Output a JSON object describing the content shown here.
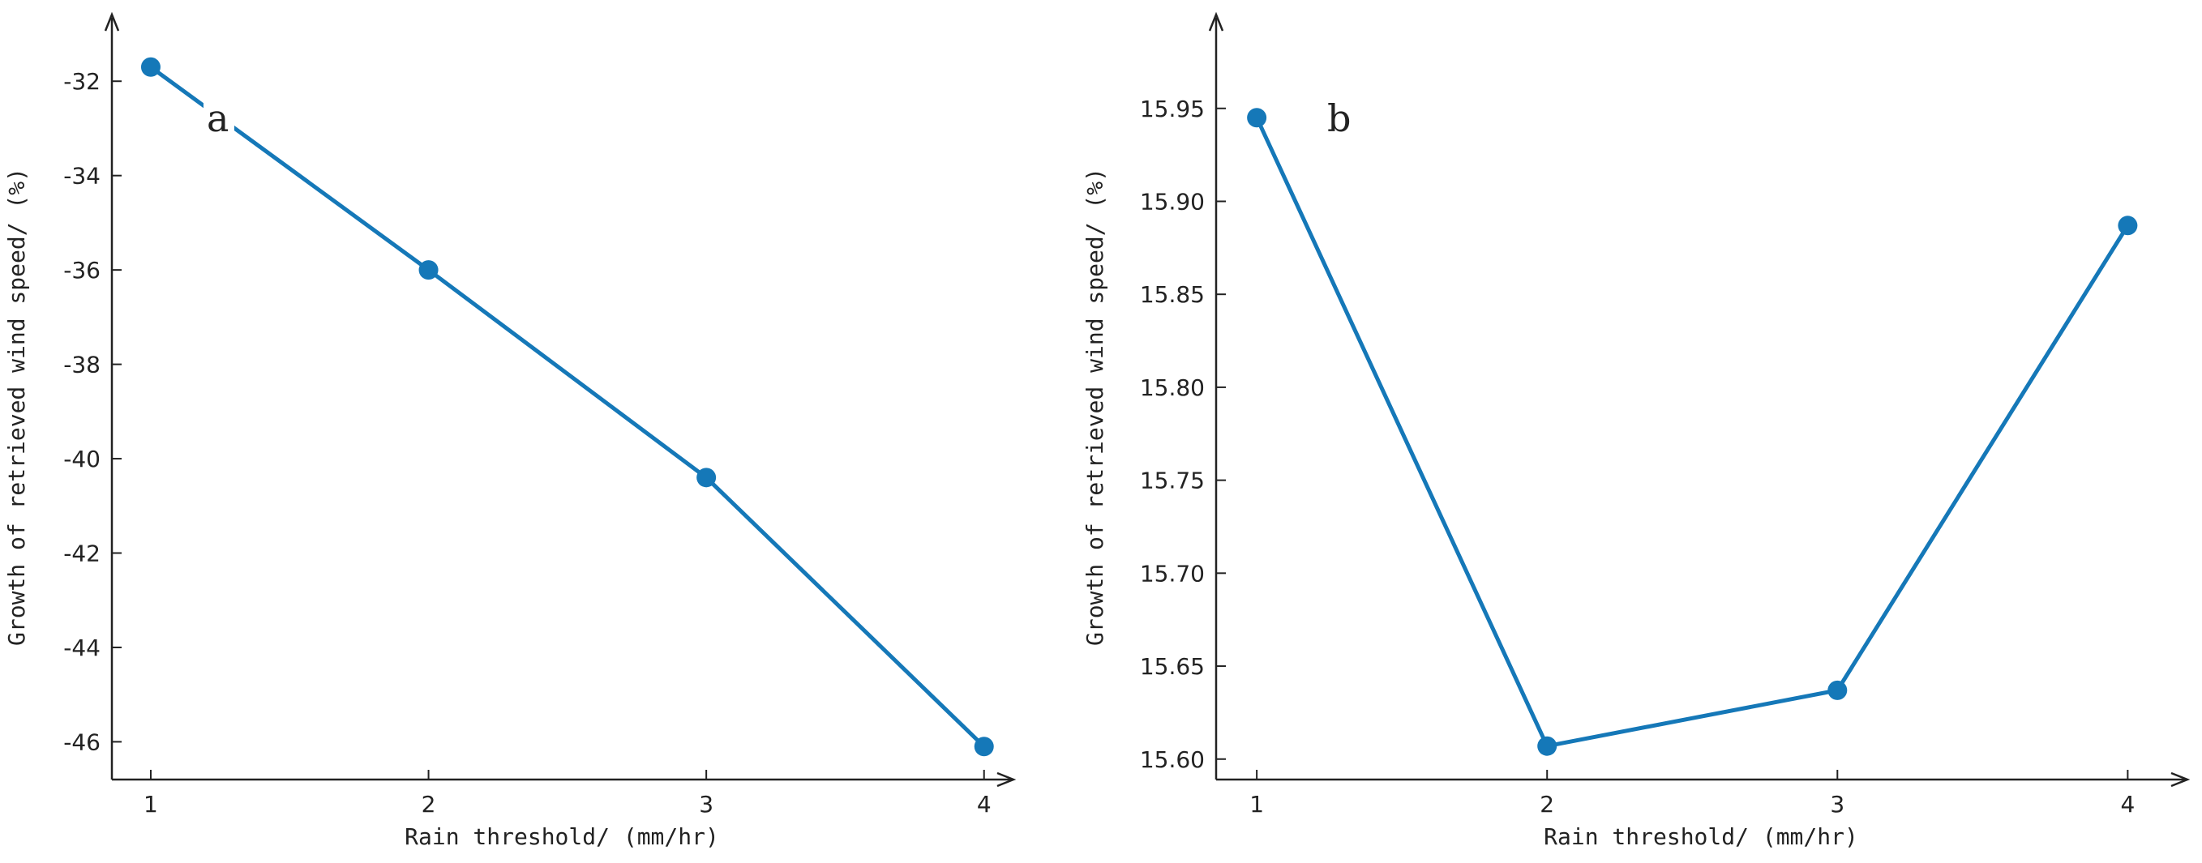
{
  "chart_data": [
    {
      "type": "line",
      "panel_label": "a",
      "xlabel": "Rain threshold/ (mm/hr)",
      "ylabel": "Growth of retrieved wind speed/ (%)",
      "x": [
        1,
        2,
        3,
        4
      ],
      "series": [
        {
          "values": [
            -31.7,
            -36.0,
            -40.4,
            -46.1
          ]
        }
      ],
      "xticks": [
        "1",
        "2",
        "3",
        "4"
      ],
      "yticks": [
        "-32",
        "-34",
        "-36",
        "-38",
        "-40",
        "-42",
        "-44",
        "-46"
      ],
      "ytick_values": [
        -32,
        -34,
        -36,
        -38,
        -40,
        -42,
        -44,
        -46
      ],
      "xlim": [
        0.86,
        4.1
      ],
      "ylim": [
        -46.8,
        -31.0
      ],
      "grid": false,
      "legend": false,
      "color": "#1578B8"
    },
    {
      "type": "line",
      "panel_label": "b",
      "xlabel": "Rain threshold/ (mm/hr)",
      "ylabel": "Growth of retrieved wind speed/ (%)",
      "x": [
        1,
        2,
        3,
        4
      ],
      "series": [
        {
          "values": [
            15.945,
            15.607,
            15.637,
            15.887
          ]
        }
      ],
      "xticks": [
        "1",
        "2",
        "3",
        "4"
      ],
      "yticks": [
        "15.60",
        "15.65",
        "15.70",
        "15.75",
        "15.80",
        "15.85",
        "15.90",
        "15.95"
      ],
      "ytick_values": [
        15.6,
        15.65,
        15.7,
        15.75,
        15.8,
        15.85,
        15.9,
        15.95
      ],
      "xlim": [
        0.86,
        4.2
      ],
      "ylim": [
        15.589,
        15.99
      ],
      "grid": false,
      "legend": false,
      "color": "#1578B8"
    }
  ]
}
